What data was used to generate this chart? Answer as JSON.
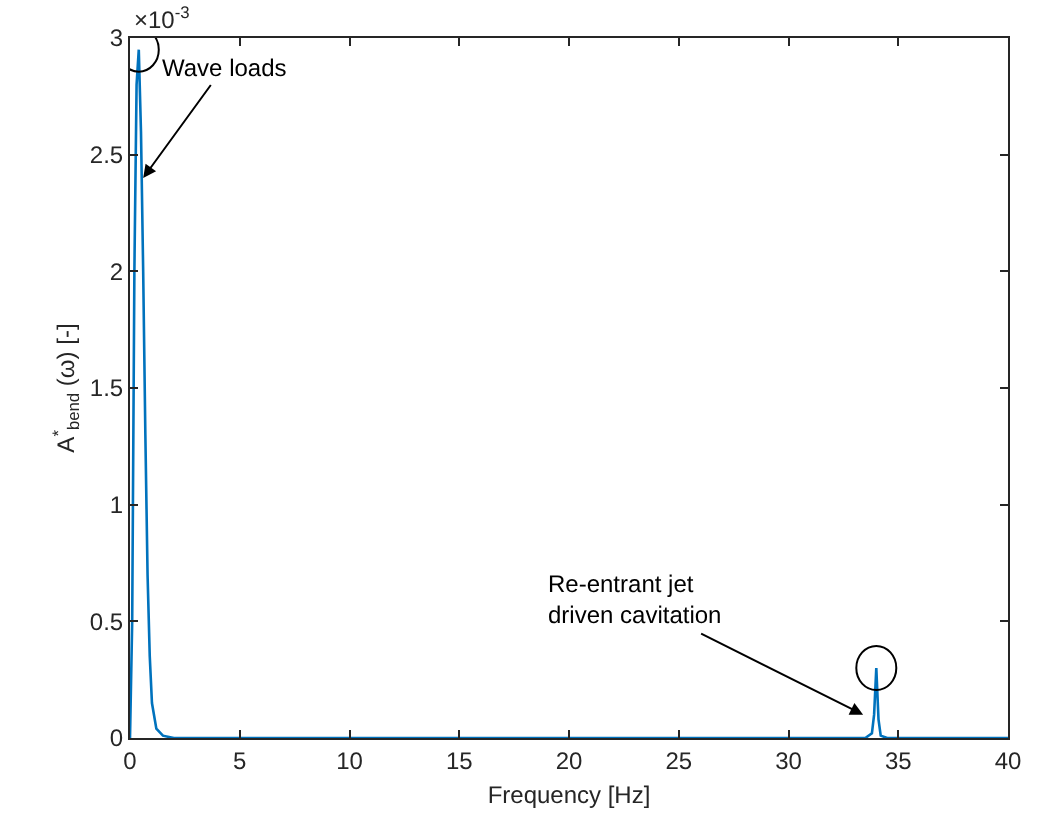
{
  "chart_data": {
    "type": "line",
    "xlabel": "Frequency [Hz]",
    "ylabel": "A$^{*}$$_{bend}$ (ω) [-]",
    "x": [
      0,
      0.1,
      0.2,
      0.3,
      0.4,
      0.5,
      0.6,
      0.7,
      0.8,
      0.9,
      1.0,
      1.2,
      1.5,
      2,
      5,
      10,
      12,
      15,
      20,
      25,
      30,
      33.5,
      33.8,
      33.9,
      34.0,
      34.1,
      34.2,
      34.5,
      40
    ],
    "series": [
      {
        "color": "#0072bd",
        "values": [
          0,
          0.5,
          2.0,
          2.8,
          2.95,
          2.6,
          2.0,
          1.3,
          0.7,
          0.35,
          0.15,
          0.04,
          0.01,
          0,
          0,
          0,
          0,
          0,
          0,
          0,
          0,
          0,
          0.02,
          0.1,
          0.3,
          0.08,
          0.01,
          0,
          0
        ]
      }
    ],
    "xlim": [
      0,
      40
    ],
    "xticks": [
      0,
      5,
      10,
      15,
      20,
      25,
      30,
      35,
      40
    ],
    "ylim": [
      0,
      3
    ],
    "yticks": [
      0,
      0.5,
      1,
      1.5,
      2,
      2.5,
      3
    ],
    "marker": "none",
    "line_style": "solid",
    "annotations": [
      "×10$^{-3}$",
      {
        "text": "Wave loads",
        "x": 0.6,
        "y": 2.4
      },
      {
        "text": "Re-entrant jet\ndriven cavitation",
        "x": 33.4,
        "y": 0.1
      }
    ]
  }
}
